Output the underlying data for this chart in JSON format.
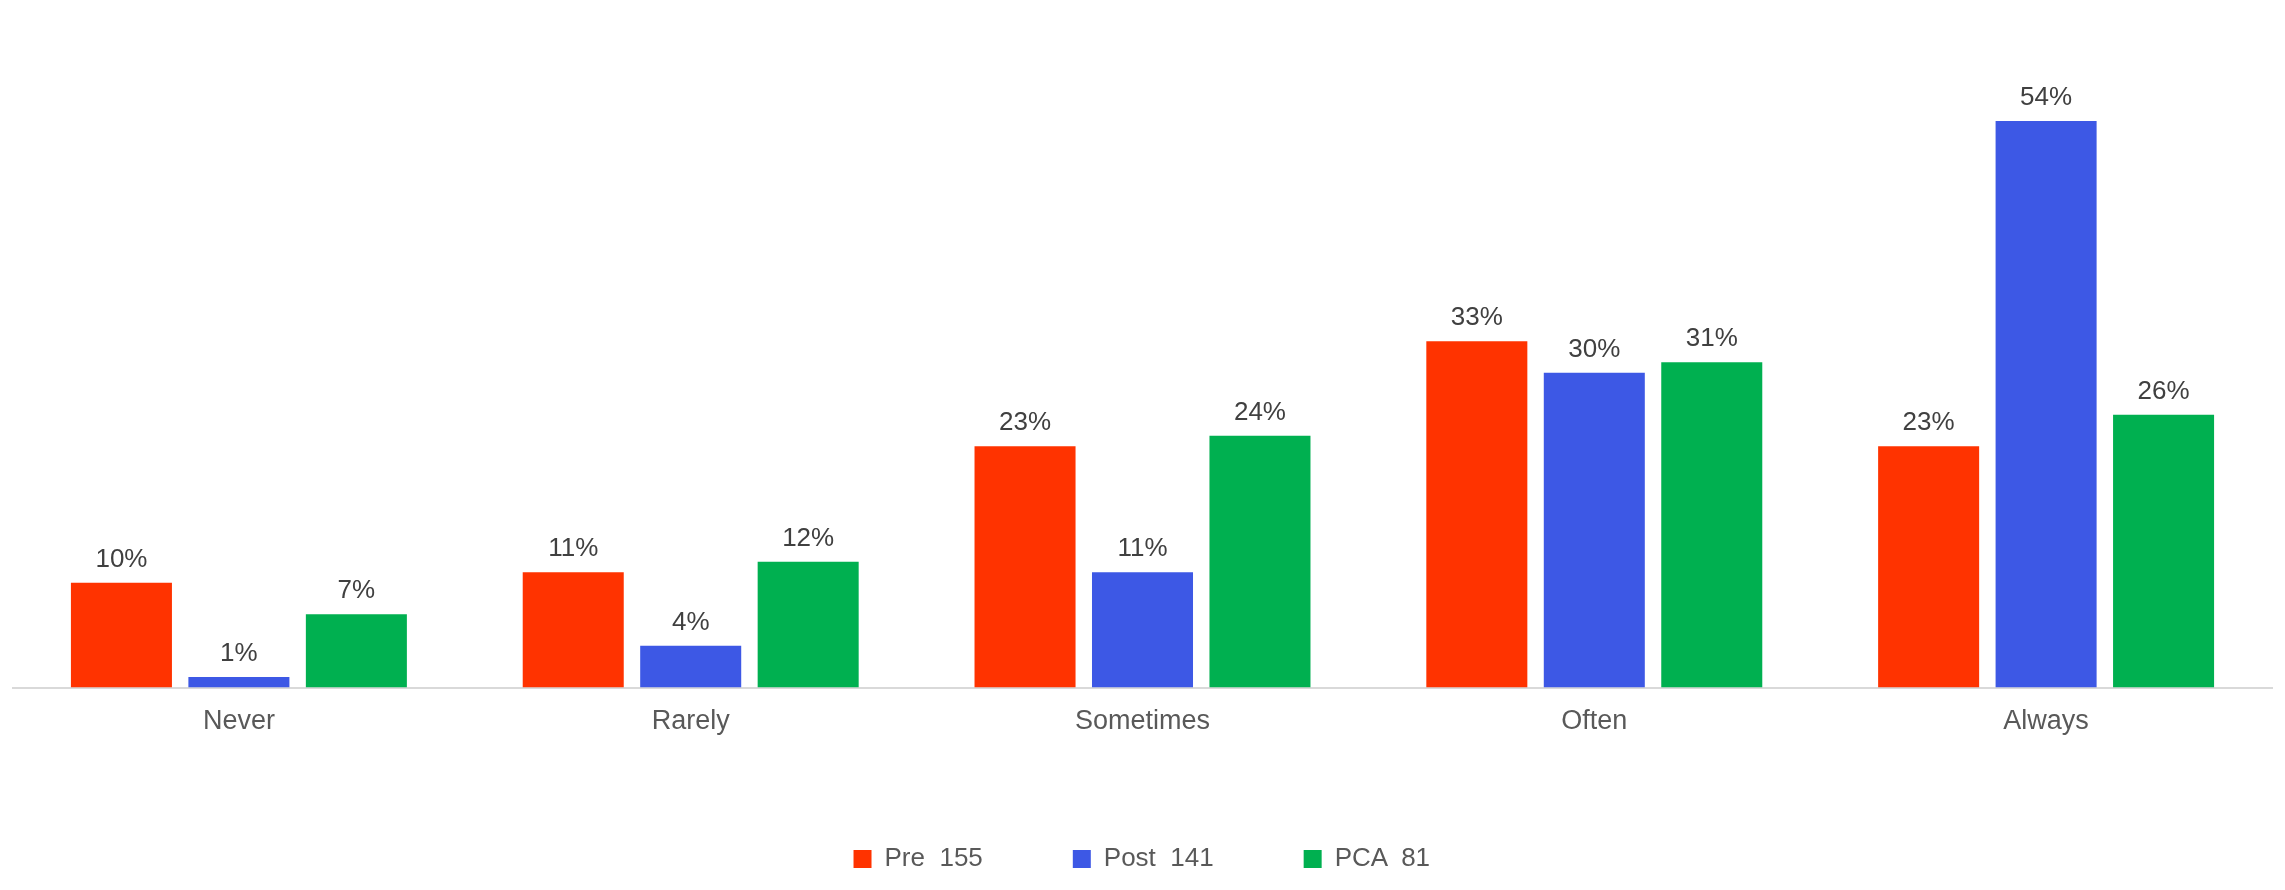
{
  "chart_data": {
    "type": "bar",
    "categories": [
      "Never",
      "Rarely",
      "Sometimes",
      "Often",
      "Always"
    ],
    "series": [
      {
        "name": "Pre  155",
        "color": "#ff3300",
        "values": [
          10,
          11,
          23,
          33,
          23
        ],
        "value_labels": [
          "10%",
          "11%",
          "23%",
          "33%",
          "23%"
        ]
      },
      {
        "name": "Post  141",
        "color": "#3d58e5",
        "values": [
          1,
          4,
          11,
          30,
          54
        ],
        "value_labels": [
          "1%",
          "4%",
          "11%",
          "30%",
          "54%"
        ]
      },
      {
        "name": "PCA  81",
        "color": "#00b050",
        "values": [
          7,
          12,
          24,
          31,
          26
        ],
        "value_labels": [
          "7%",
          "12%",
          "24%",
          "31%",
          "26%"
        ]
      }
    ],
    "legend": "bottom",
    "grid": false
  }
}
